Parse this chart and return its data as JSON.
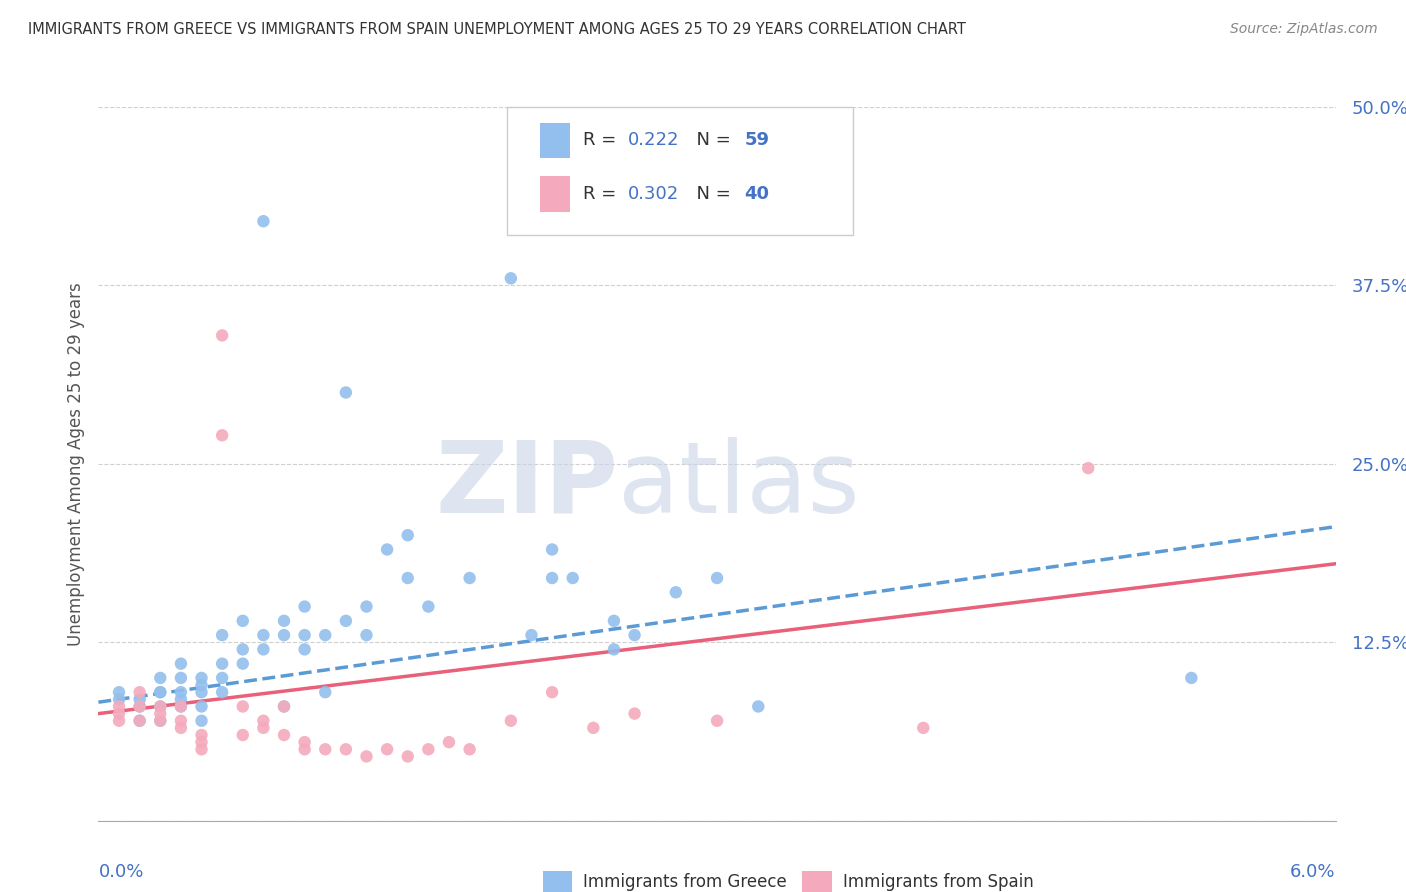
{
  "title": "IMMIGRANTS FROM GREECE VS IMMIGRANTS FROM SPAIN UNEMPLOYMENT AMONG AGES 25 TO 29 YEARS CORRELATION CHART",
  "source": "Source: ZipAtlas.com",
  "ylabel": "Unemployment Among Ages 25 to 29 years",
  "xmin": 0.0,
  "xmax": 0.06,
  "ymin": 0.0,
  "ymax": 0.5,
  "yticks": [
    0.0,
    0.125,
    0.25,
    0.375,
    0.5
  ],
  "ytick_labels": [
    "",
    "12.5%",
    "25.0%",
    "37.5%",
    "50.0%"
  ],
  "color_greece": "#92BFED",
  "color_spain": "#F4AABC",
  "trendline_greece": {
    "slope": 2.05,
    "intercept": 0.083
  },
  "trendline_spain": {
    "slope": 1.75,
    "intercept": 0.075
  },
  "greece_points": [
    [
      0.001,
      0.09
    ],
    [
      0.001,
      0.085
    ],
    [
      0.002,
      0.08
    ],
    [
      0.002,
      0.085
    ],
    [
      0.002,
      0.07
    ],
    [
      0.003,
      0.09
    ],
    [
      0.003,
      0.07
    ],
    [
      0.003,
      0.1
    ],
    [
      0.003,
      0.08
    ],
    [
      0.003,
      0.09
    ],
    [
      0.004,
      0.09
    ],
    [
      0.004,
      0.08
    ],
    [
      0.004,
      0.1
    ],
    [
      0.004,
      0.11
    ],
    [
      0.004,
      0.085
    ],
    [
      0.005,
      0.09
    ],
    [
      0.005,
      0.1
    ],
    [
      0.005,
      0.08
    ],
    [
      0.005,
      0.07
    ],
    [
      0.005,
      0.095
    ],
    [
      0.006,
      0.11
    ],
    [
      0.006,
      0.09
    ],
    [
      0.006,
      0.13
    ],
    [
      0.006,
      0.1
    ],
    [
      0.007,
      0.14
    ],
    [
      0.007,
      0.12
    ],
    [
      0.007,
      0.11
    ],
    [
      0.008,
      0.42
    ],
    [
      0.008,
      0.13
    ],
    [
      0.008,
      0.12
    ],
    [
      0.009,
      0.13
    ],
    [
      0.009,
      0.14
    ],
    [
      0.009,
      0.08
    ],
    [
      0.01,
      0.15
    ],
    [
      0.01,
      0.12
    ],
    [
      0.01,
      0.13
    ],
    [
      0.011,
      0.13
    ],
    [
      0.011,
      0.09
    ],
    [
      0.012,
      0.3
    ],
    [
      0.012,
      0.14
    ],
    [
      0.013,
      0.13
    ],
    [
      0.013,
      0.15
    ],
    [
      0.014,
      0.19
    ],
    [
      0.015,
      0.2
    ],
    [
      0.015,
      0.17
    ],
    [
      0.016,
      0.15
    ],
    [
      0.018,
      0.17
    ],
    [
      0.02,
      0.38
    ],
    [
      0.021,
      0.13
    ],
    [
      0.022,
      0.19
    ],
    [
      0.022,
      0.17
    ],
    [
      0.023,
      0.17
    ],
    [
      0.025,
      0.14
    ],
    [
      0.025,
      0.12
    ],
    [
      0.026,
      0.13
    ],
    [
      0.028,
      0.16
    ],
    [
      0.03,
      0.17
    ],
    [
      0.032,
      0.08
    ],
    [
      0.053,
      0.1
    ]
  ],
  "spain_points": [
    [
      0.001,
      0.08
    ],
    [
      0.001,
      0.07
    ],
    [
      0.001,
      0.075
    ],
    [
      0.002,
      0.09
    ],
    [
      0.002,
      0.07
    ],
    [
      0.002,
      0.08
    ],
    [
      0.003,
      0.08
    ],
    [
      0.003,
      0.07
    ],
    [
      0.003,
      0.075
    ],
    [
      0.004,
      0.08
    ],
    [
      0.004,
      0.07
    ],
    [
      0.004,
      0.065
    ],
    [
      0.005,
      0.06
    ],
    [
      0.005,
      0.05
    ],
    [
      0.005,
      0.055
    ],
    [
      0.006,
      0.34
    ],
    [
      0.006,
      0.27
    ],
    [
      0.007,
      0.08
    ],
    [
      0.007,
      0.06
    ],
    [
      0.008,
      0.07
    ],
    [
      0.008,
      0.065
    ],
    [
      0.009,
      0.06
    ],
    [
      0.009,
      0.08
    ],
    [
      0.01,
      0.05
    ],
    [
      0.01,
      0.055
    ],
    [
      0.011,
      0.05
    ],
    [
      0.012,
      0.05
    ],
    [
      0.013,
      0.045
    ],
    [
      0.014,
      0.05
    ],
    [
      0.015,
      0.045
    ],
    [
      0.016,
      0.05
    ],
    [
      0.017,
      0.055
    ],
    [
      0.018,
      0.05
    ],
    [
      0.02,
      0.07
    ],
    [
      0.022,
      0.09
    ],
    [
      0.024,
      0.065
    ],
    [
      0.026,
      0.075
    ],
    [
      0.03,
      0.07
    ],
    [
      0.04,
      0.065
    ],
    [
      0.048,
      0.247
    ]
  ]
}
